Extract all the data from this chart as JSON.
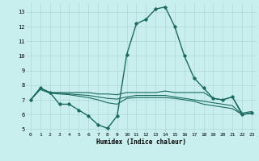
{
  "title": "",
  "xlabel": "Humidex (Indice chaleur)",
  "xlim": [
    -0.5,
    23.5
  ],
  "ylim": [
    4.8,
    13.6
  ],
  "yticks": [
    5,
    6,
    7,
    8,
    9,
    10,
    11,
    12,
    13
  ],
  "xticks": [
    0,
    1,
    2,
    3,
    4,
    5,
    6,
    7,
    8,
    9,
    10,
    11,
    12,
    13,
    14,
    15,
    16,
    17,
    18,
    19,
    20,
    21,
    22,
    23
  ],
  "bg_color": "#c8eeed",
  "grid_color": "#aed8d6",
  "line_color": "#1a6b60",
  "series": [
    {
      "x": [
        0,
        1,
        2,
        3,
        4,
        5,
        6,
        7,
        8,
        9,
        10,
        11,
        12,
        13,
        14,
        15,
        16,
        17,
        18,
        19,
        20,
        21,
        22,
        23
      ],
      "y": [
        7.0,
        7.8,
        7.5,
        6.7,
        6.7,
        6.3,
        5.9,
        5.3,
        5.05,
        5.9,
        10.1,
        12.2,
        12.5,
        13.2,
        13.35,
        12.0,
        10.0,
        8.5,
        7.8,
        7.1,
        7.0,
        7.2,
        6.0,
        6.1
      ],
      "marker": "D",
      "markersize": 1.8,
      "linewidth": 1.0,
      "zorder": 5
    },
    {
      "x": [
        0,
        1,
        2,
        3,
        4,
        5,
        6,
        7,
        8,
        9,
        10,
        11,
        12,
        13,
        14,
        15,
        16,
        17,
        18,
        19,
        20,
        21,
        22,
        23
      ],
      "y": [
        7.0,
        7.8,
        7.5,
        7.5,
        7.5,
        7.5,
        7.5,
        7.4,
        7.4,
        7.35,
        7.5,
        7.5,
        7.5,
        7.5,
        7.6,
        7.5,
        7.5,
        7.5,
        7.5,
        7.1,
        7.0,
        7.2,
        6.1,
        6.2
      ],
      "marker": null,
      "markersize": 0,
      "linewidth": 0.8,
      "zorder": 3
    },
    {
      "x": [
        0,
        1,
        2,
        3,
        4,
        5,
        6,
        7,
        8,
        9,
        10,
        11,
        12,
        13,
        14,
        15,
        16,
        17,
        18,
        19,
        20,
        21,
        22,
        23
      ],
      "y": [
        7.0,
        7.8,
        7.5,
        7.45,
        7.4,
        7.35,
        7.3,
        7.2,
        7.1,
        7.05,
        7.2,
        7.3,
        7.3,
        7.3,
        7.3,
        7.2,
        7.1,
        7.0,
        6.9,
        6.8,
        6.7,
        6.6,
        6.0,
        6.1
      ],
      "marker": null,
      "markersize": 0,
      "linewidth": 0.8,
      "zorder": 3
    },
    {
      "x": [
        0,
        1,
        2,
        3,
        4,
        5,
        6,
        7,
        8,
        9,
        10,
        11,
        12,
        13,
        14,
        15,
        16,
        17,
        18,
        19,
        20,
        21,
        22,
        23
      ],
      "y": [
        7.0,
        7.7,
        7.45,
        7.4,
        7.35,
        7.25,
        7.15,
        7.0,
        6.8,
        6.7,
        7.1,
        7.15,
        7.15,
        7.15,
        7.15,
        7.1,
        7.0,
        6.9,
        6.7,
        6.6,
        6.5,
        6.4,
        6.0,
        6.1
      ],
      "marker": null,
      "markersize": 0,
      "linewidth": 0.8,
      "zorder": 3
    }
  ]
}
